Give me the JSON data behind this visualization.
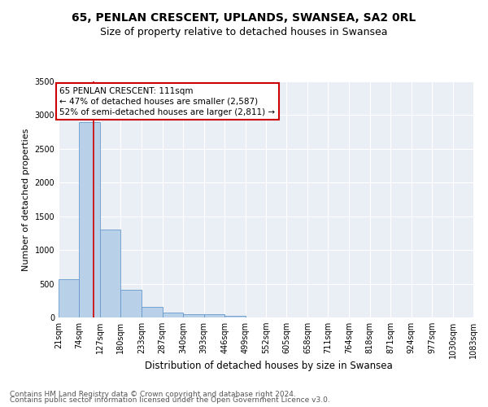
{
  "title1": "65, PENLAN CRESCENT, UPLANDS, SWANSEA, SA2 0RL",
  "title2": "Size of property relative to detached houses in Swansea",
  "xlabel": "Distribution of detached houses by size in Swansea",
  "ylabel": "Number of detached properties",
  "bar_color": "#b8d0e8",
  "bar_edge_color": "#6699cc",
  "bins": [
    21,
    74,
    127,
    180,
    233,
    287,
    340,
    393,
    446,
    499,
    552,
    605,
    658,
    711,
    764,
    818,
    871,
    924,
    977,
    1030,
    1083
  ],
  "bin_labels": [
    "21sqm",
    "74sqm",
    "127sqm",
    "180sqm",
    "233sqm",
    "287sqm",
    "340sqm",
    "393sqm",
    "446sqm",
    "499sqm",
    "552sqm",
    "605sqm",
    "658sqm",
    "711sqm",
    "764sqm",
    "818sqm",
    "871sqm",
    "924sqm",
    "977sqm",
    "1030sqm",
    "1083sqm"
  ],
  "counts": [
    570,
    2900,
    1300,
    410,
    160,
    75,
    50,
    45,
    30,
    0,
    0,
    0,
    0,
    0,
    0,
    0,
    0,
    0,
    0,
    0
  ],
  "property_size": 111,
  "vline_color": "#cc0000",
  "annotation_line1": "65 PENLAN CRESCENT: 111sqm",
  "annotation_line2": "← 47% of detached houses are smaller (2,587)",
  "annotation_line3": "52% of semi-detached houses are larger (2,811) →",
  "annotation_box_color": "#ffffff",
  "annotation_border_color": "#cc0000",
  "ylim": [
    0,
    3500
  ],
  "yticks": [
    0,
    500,
    1000,
    1500,
    2000,
    2500,
    3000,
    3500
  ],
  "footer1": "Contains HM Land Registry data © Crown copyright and database right 2024.",
  "footer2": "Contains public sector information licensed under the Open Government Licence v3.0.",
  "bg_color": "#eaeff5",
  "grid_color": "#ffffff",
  "title1_fontsize": 10,
  "title2_fontsize": 9,
  "xlabel_fontsize": 8.5,
  "ylabel_fontsize": 8,
  "tick_fontsize": 7,
  "annotation_fontsize": 7.5,
  "footer_fontsize": 6.5
}
